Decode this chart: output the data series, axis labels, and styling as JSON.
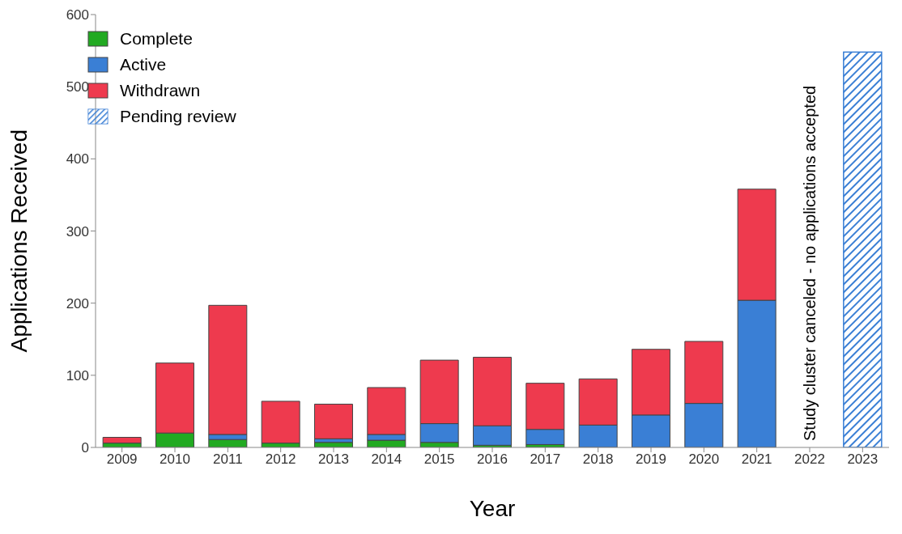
{
  "chart_data": {
    "type": "bar",
    "stacked": true,
    "xlabel": "Year",
    "ylabel": "Applications Received",
    "categories": [
      "2009",
      "2010",
      "2011",
      "2012",
      "2013",
      "2014",
      "2015",
      "2016",
      "2017",
      "2018",
      "2019",
      "2020",
      "2021",
      "2022",
      "2023"
    ],
    "series": [
      {
        "name": "Complete",
        "color": "#22aa22",
        "values": [
          6,
          20,
          11,
          6,
          7,
          10,
          7,
          3,
          4,
          0,
          0,
          0,
          0,
          null,
          null
        ]
      },
      {
        "name": "Active",
        "color": "#3a7fd5",
        "values": [
          0,
          0,
          7,
          0,
          5,
          8,
          26,
          27,
          21,
          31,
          45,
          61,
          204,
          null,
          null
        ]
      },
      {
        "name": "Withdrawn",
        "color": "#ee3a4e",
        "values": [
          8,
          97,
          179,
          58,
          48,
          65,
          88,
          95,
          64,
          64,
          91,
          86,
          154,
          null,
          null
        ]
      },
      {
        "name": "Pending review",
        "color": "#3a7fd5",
        "values": [
          null,
          null,
          null,
          null,
          null,
          null,
          null,
          null,
          null,
          null,
          null,
          null,
          null,
          null,
          548
        ]
      }
    ],
    "ylim": [
      0,
      600
    ],
    "yticks": [
      0,
      100,
      200,
      300,
      400,
      500,
      600
    ],
    "legend": "top left",
    "annotations": [
      "Study cluster canceled - no applications accepted"
    ]
  }
}
